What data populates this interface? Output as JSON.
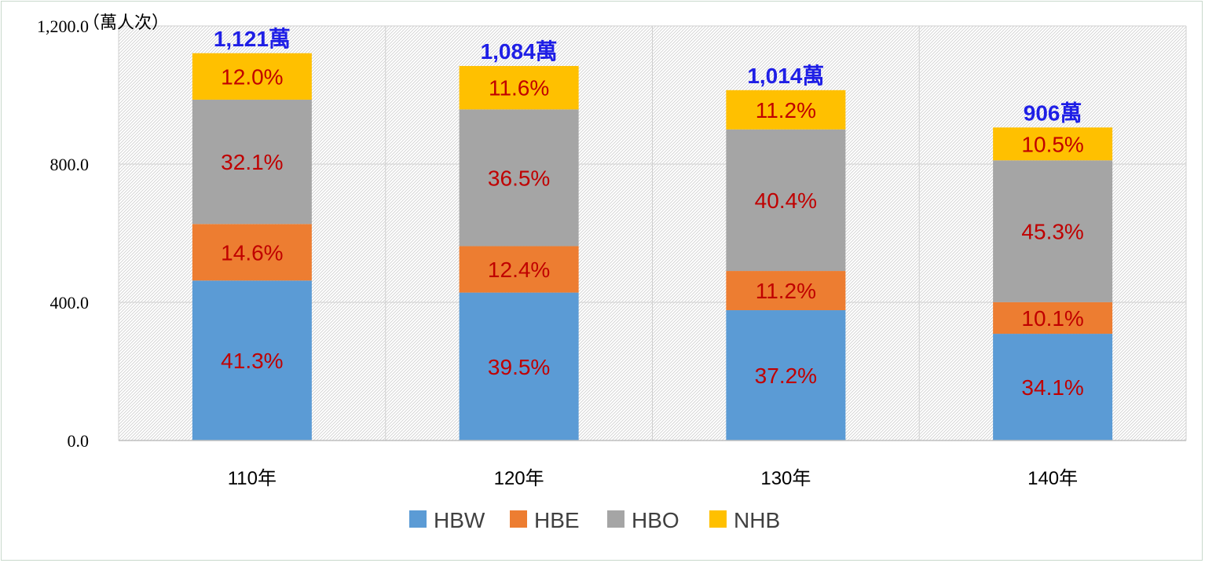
{
  "chart_data": {
    "type": "bar",
    "stacked": true,
    "y_unit_label": "（萬人次）",
    "categories": [
      "110年",
      "120年",
      "130年",
      "140年"
    ],
    "totals": [
      1121,
      1084,
      1014,
      906
    ],
    "total_labels": [
      "1,121萬",
      "1,084萬",
      "1,014萬",
      "906萬"
    ],
    "series": [
      {
        "name": "HBW",
        "color": "#5b9bd5",
        "percent_labels": [
          "41.3%",
          "39.5%",
          "37.2%",
          "34.1%"
        ],
        "percents": [
          41.3,
          39.5,
          37.2,
          34.1
        ]
      },
      {
        "name": "HBE",
        "color": "#ed7d31",
        "percent_labels": [
          "14.6%",
          "12.4%",
          "11.2%",
          "10.1%"
        ],
        "percents": [
          14.6,
          12.4,
          11.2,
          10.1
        ]
      },
      {
        "name": "HBO",
        "color": "#a5a5a5",
        "percent_labels": [
          "32.1%",
          "36.5%",
          "40.4%",
          "45.3%"
        ],
        "percents": [
          32.1,
          36.5,
          40.4,
          45.3
        ]
      },
      {
        "name": "NHB",
        "color": "#ffc000",
        "percent_labels": [
          "12.0%",
          "11.6%",
          "11.2%",
          "10.5%"
        ],
        "percents": [
          12.0,
          11.6,
          11.2,
          10.5
        ]
      }
    ],
    "y_ticks": [
      "0.0",
      "400.0",
      "800.0",
      "1,200.0"
    ],
    "y_tick_values": [
      0,
      400,
      800,
      1200
    ],
    "ylim": [
      0,
      1200
    ],
    "grid": true,
    "legend_position": "bottom",
    "segment_label_color": "#c00000",
    "total_label_color": "#1f1fe6"
  }
}
